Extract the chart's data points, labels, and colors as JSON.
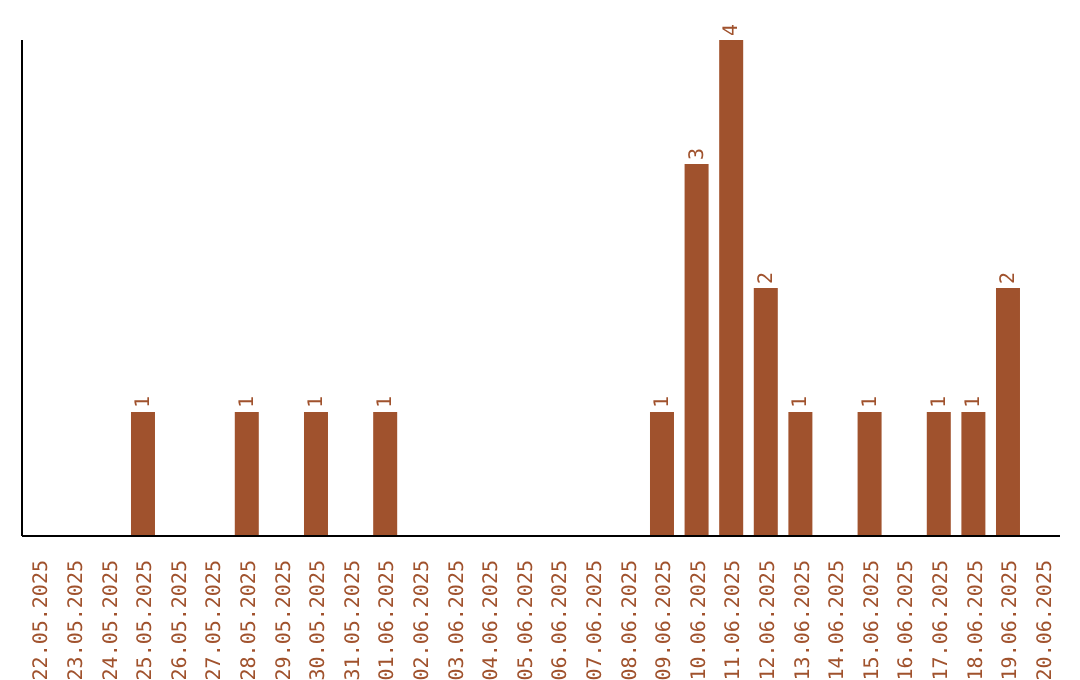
{
  "chart_data": {
    "type": "bar",
    "categories": [
      "22.05.2025",
      "23.05.2025",
      "24.05.2025",
      "25.05.2025",
      "26.05.2025",
      "27.05.2025",
      "28.05.2025",
      "29.05.2025",
      "30.05.2025",
      "31.05.2025",
      "01.06.2025",
      "02.06.2025",
      "03.06.2025",
      "04.06.2025",
      "05.06.2025",
      "06.06.2025",
      "07.06.2025",
      "08.06.2025",
      "09.06.2025",
      "10.06.2025",
      "11.06.2025",
      "12.06.2025",
      "13.06.2025",
      "14.06.2025",
      "15.06.2025",
      "16.06.2025",
      "17.06.2025",
      "18.06.2025",
      "19.06.2025",
      "20.06.2025"
    ],
    "values": [
      0,
      0,
      0,
      1,
      0,
      0,
      1,
      0,
      1,
      0,
      1,
      0,
      0,
      0,
      0,
      0,
      0,
      0,
      1,
      3,
      4,
      2,
      1,
      0,
      1,
      0,
      1,
      1,
      2,
      0
    ],
    "value_labels": [
      null,
      null,
      null,
      "1",
      null,
      null,
      "1",
      null,
      "1",
      null,
      "1",
      null,
      null,
      null,
      null,
      null,
      null,
      null,
      "1",
      "3",
      "4",
      "2",
      "1",
      null,
      "1",
      null,
      "1",
      "1",
      "2",
      null
    ],
    "color": "#a0522d",
    "grid": false
  }
}
